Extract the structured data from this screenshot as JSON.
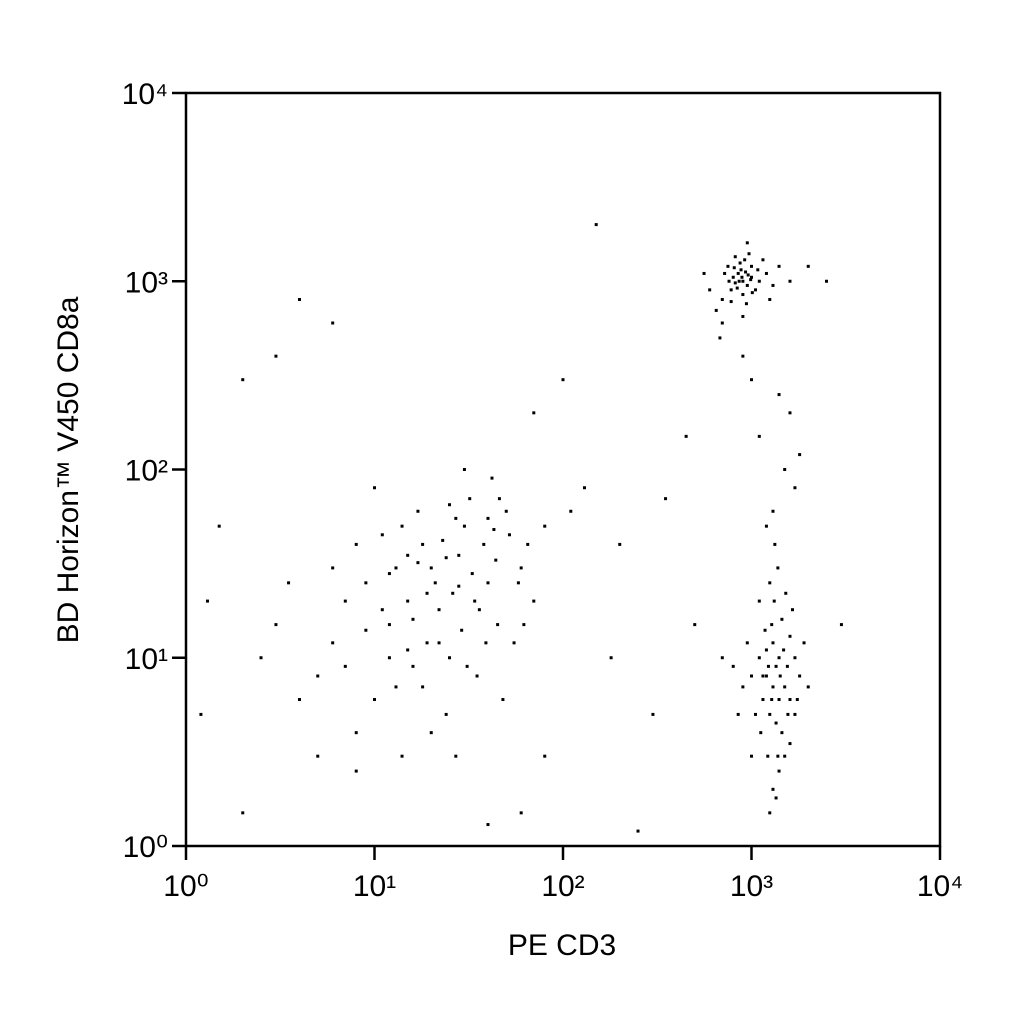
{
  "chart_data": {
    "type": "scatter",
    "x_label": "PE CD3",
    "y_label": "BD Horizon™ V450 CD8a",
    "log_x": true,
    "log_y": true,
    "color": "#000000",
    "xlim": [
      1,
      10000
    ],
    "ylim": [
      1,
      10000
    ],
    "xticks": [
      {
        "value": 1,
        "label": "10⁰"
      },
      {
        "value": 10,
        "label": "10¹"
      },
      {
        "value": 100,
        "label": "10²"
      },
      {
        "value": 1000,
        "label": "10³"
      },
      {
        "value": 10000,
        "label": "10⁴"
      }
    ],
    "yticks": [
      {
        "value": 1,
        "label": "10⁰"
      },
      {
        "value": 10,
        "label": "10¹"
      },
      {
        "value": 100,
        "label": "10²"
      },
      {
        "value": 1000,
        "label": "10³"
      },
      {
        "value": 10000,
        "label": "10⁴"
      }
    ],
    "x": [
      5,
      12,
      20,
      8,
      30,
      15,
      25,
      40,
      10,
      18,
      6,
      50,
      22,
      35,
      9,
      14,
      28,
      45,
      60,
      7,
      16,
      32,
      11,
      4,
      19,
      26,
      55,
      13,
      38,
      24,
      3,
      17,
      42,
      8,
      29,
      65,
      12,
      21,
      36,
      10,
      48,
      15,
      27,
      5,
      33,
      70,
      9,
      23,
      18,
      44,
      2.5,
      30,
      14,
      80,
      6,
      20,
      39,
      11,
      52,
      25,
      16,
      7,
      34,
      13,
      58,
      22,
      40,
      3.5,
      19,
      27,
      12,
      46,
      31,
      8,
      24,
      62,
      15,
      28,
      17,
      43,
      900,
      850,
      950,
      800,
      1000,
      780,
      920,
      1100,
      700,
      880,
      960,
      820,
      1050,
      750,
      900,
      1200,
      650,
      870,
      990,
      840,
      930,
      760,
      1150,
      700,
      890,
      1010,
      810,
      970,
      1300,
      600,
      860,
      940,
      1080,
      720,
      1400,
      900,
      820,
      1000,
      780,
      1600,
      680,
      950,
      1250,
      560,
      2000,
      1300,
      1200,
      1400,
      1350,
      1250,
      1500,
      1100,
      1450,
      1300,
      1600,
      1000,
      1380,
      1280,
      1550,
      1150,
      1700,
      1320,
      1220,
      1480,
      900,
      1400,
      1250,
      1600,
      1050,
      1350,
      1800,
      1180,
      1420,
      800,
      1500,
      1280,
      1650,
      950,
      1380,
      1120,
      1700,
      1300,
      1230,
      1560,
      2000,
      850,
      1450,
      1350,
      1100,
      1600,
      1200,
      1900,
      1000,
      1330,
      1520,
      700,
      1250,
      1750,
      1150,
      1400,
      1300,
      1500,
      1100,
      1700,
      1000,
      1600,
      1200,
      1400,
      900,
      1800,
      1.5,
      2,
      4,
      3,
      150,
      100,
      200,
      300,
      500,
      70,
      130,
      2,
      250,
      1.2,
      6,
      450,
      80,
      180,
      3000,
      2500,
      110,
      40,
      1.3,
      350,
      60
    ],
    "values": [
      8,
      15,
      30,
      4,
      50,
      20,
      10,
      25,
      6,
      40,
      12,
      60,
      18,
      8,
      25,
      3,
      35,
      15,
      30,
      20,
      9,
      70,
      45,
      6,
      12,
      22,
      12,
      30,
      40,
      5,
      15,
      60,
      90,
      2.5,
      14,
      40,
      10,
      25,
      18,
      80,
      6,
      35,
      55,
      3,
      28,
      20,
      14,
      42,
      7,
      33,
      10,
      100,
      50,
      50,
      30,
      4,
      12,
      18,
      45,
      65,
      16,
      9,
      20,
      7,
      25,
      12,
      55,
      25,
      22,
      3,
      28,
      70,
      9,
      40,
      34,
      15,
      11,
      24,
      32,
      48,
      1000,
      1100,
      950,
      1050,
      1200,
      900,
      1300,
      1000,
      800,
      1150,
      1080,
      980,
      900,
      1200,
      850,
      1100,
      700,
      1250,
      1020,
      920,
      1120,
      1000,
      1300,
      600,
      1050,
      870,
      1180,
      1400,
      950,
      900,
      1000,
      760,
      1150,
      1100,
      1200,
      650,
      1350,
      1050,
      780,
      1000,
      500,
      1600,
      800,
      1100,
      1200,
      7,
      8,
      6,
      9,
      5,
      7,
      10,
      4,
      12,
      6,
      8,
      3,
      15,
      9,
      6,
      5,
      20,
      3,
      11,
      7,
      2.5,
      25,
      13,
      5,
      4.5,
      8,
      14,
      8,
      9,
      3,
      6,
      18,
      12,
      30,
      4,
      10,
      2,
      9,
      5,
      7,
      5,
      16,
      1.8,
      20,
      3.5,
      11,
      12,
      3,
      40,
      22,
      10,
      1.5,
      6,
      8,
      10,
      60,
      100,
      150,
      80,
      300,
      200,
      50,
      250,
      400,
      120,
      50,
      1.5,
      800,
      400,
      2000,
      300,
      40,
      5,
      15,
      200,
      80,
      300,
      1.2,
      5,
      600,
      150,
      3,
      10,
      15,
      1000,
      60,
      1.3,
      20,
      70,
      1.5
    ]
  }
}
